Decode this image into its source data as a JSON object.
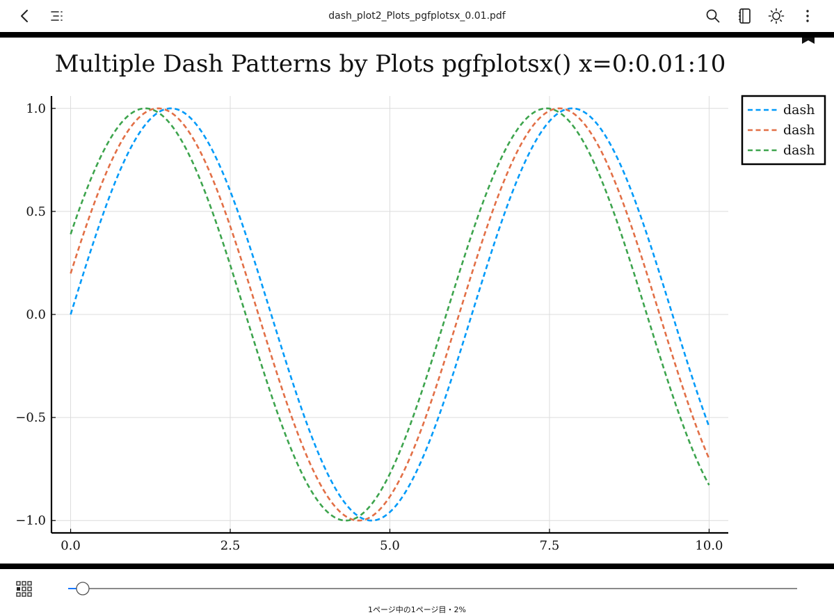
{
  "toolbar": {
    "title": "dash_plot2_Plots_pgfplotsx_0.01.pdf",
    "icons": [
      "back-chevron-icon",
      "outline-list-icon",
      "search-icon",
      "notebook-icon",
      "brightness-icon",
      "more-vertical-icon",
      "bookmark-icon"
    ]
  },
  "footer": {
    "page_status": "1ページ中の1ページ目・2%",
    "progress": 0.02,
    "icons": [
      "thumbnail-grid-icon"
    ]
  },
  "chart_data": {
    "type": "line",
    "title": "Multiple Dash Patterns by Plots pgfplotsx() x=0:0.01:10",
    "xlabel": "",
    "ylabel": "",
    "xlim": [
      -0.3,
      10.3
    ],
    "ylim": [
      -1.06,
      1.06
    ],
    "xticks": [
      0.0,
      2.5,
      5.0,
      7.5,
      10.0
    ],
    "xtick_labels": [
      "0.0",
      "2.5",
      "5.0",
      "7.5",
      "10.0"
    ],
    "yticks": [
      -1.0,
      -0.5,
      0.0,
      0.5,
      1.0
    ],
    "ytick_labels": [
      "−1.0",
      "−0.5",
      "0.0",
      "0.5",
      "1.0"
    ],
    "grid": true,
    "legend_position": "outside-top-right",
    "x_range": [
      0,
      10
    ],
    "series": [
      {
        "name": "dash",
        "function": "y = sin(x)",
        "color": "#009af9",
        "dash": "dash",
        "points": [
          [
            0,
            0.0
          ],
          [
            1.571,
            1.0
          ],
          [
            3.142,
            0.0
          ],
          [
            4.712,
            -1.0
          ],
          [
            6.283,
            0.0
          ],
          [
            7.854,
            1.0
          ],
          [
            10,
            -0.544
          ]
        ]
      },
      {
        "name": "dash",
        "function": "y = sin(x + 0.2)",
        "color": "#e26f46",
        "dash": "dash",
        "points": [
          [
            0,
            0.199
          ],
          [
            1.371,
            1.0
          ],
          [
            2.942,
            0.0
          ],
          [
            4.512,
            -1.0
          ],
          [
            6.083,
            0.0
          ],
          [
            7.654,
            1.0
          ],
          [
            10,
            -0.703
          ]
        ]
      },
      {
        "name": "dash",
        "function": "y = sin(x + 0.4)",
        "color": "#3da44d",
        "dash": "dash",
        "points": [
          [
            0,
            0.389
          ],
          [
            1.171,
            1.0
          ],
          [
            2.742,
            0.0
          ],
          [
            4.312,
            -1.0
          ],
          [
            5.883,
            0.0
          ],
          [
            7.454,
            1.0
          ],
          [
            10,
            -0.827
          ]
        ]
      }
    ]
  }
}
